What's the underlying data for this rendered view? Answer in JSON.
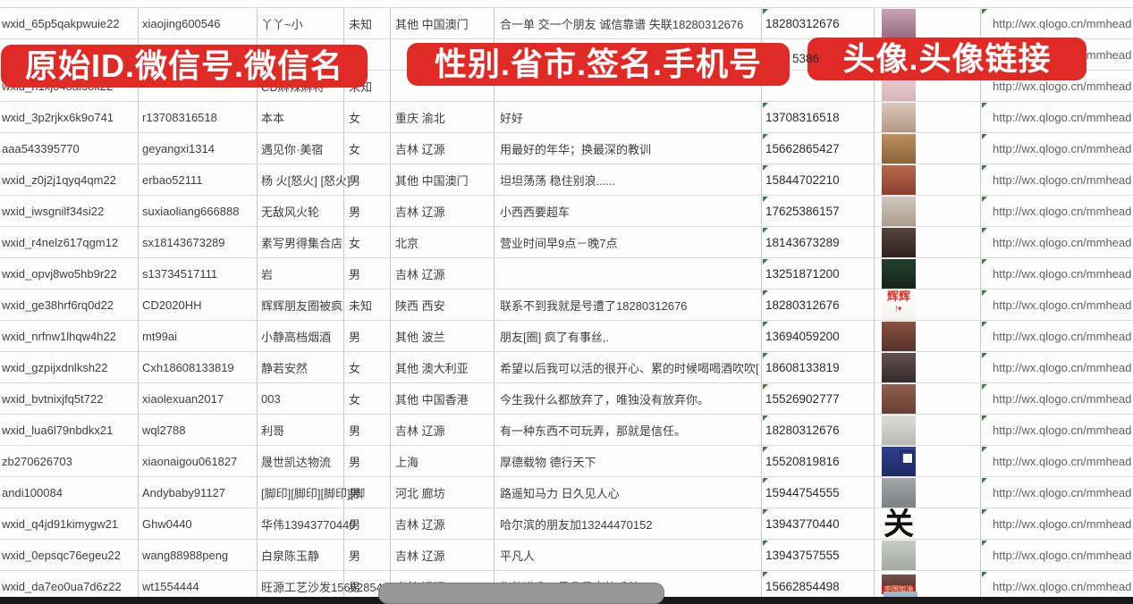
{
  "banners": [
    {
      "label": "原始ID.微信号.微信名"
    },
    {
      "label": "性别.省市.签名.手机号"
    },
    {
      "label": "头像.头像链接"
    }
  ],
  "partial_phone": "5386",
  "link_text": "http://wx.qlogo.cn/mmhead",
  "colors": {
    "banner_red": "#e02a25",
    "grid_vertical": "#c9c9c9",
    "grid_horizontal": "#d9d9d9",
    "cell_text": "#3f3f3f",
    "link_text": "#616161",
    "marker_green": "#3f7d46",
    "scrollbar_track": "#181818",
    "scrollbar_thumb": "#979797"
  },
  "partial_avatar": {
    "c1": "#a3bbcc",
    "c2": "#7f9cb2"
  },
  "columns": [
    "原始ID",
    "微信号",
    "微信名",
    "性别",
    "省市",
    "签名",
    "手机号",
    "头像",
    "头像链接"
  ],
  "rows": [
    {
      "wxid": "wxid_65p5qakpwuie22",
      "wechat_id": "xiaojing600546",
      "name": "丫丫~小",
      "gender": "未知",
      "region": "其他 中国澳门",
      "signature": "合一单 交一个朋友 诚信靠谱 失联18280312676",
      "phone": "18280312676",
      "has_link": true,
      "avatar": {
        "c1": "#c9a3b4",
        "c2": "#96697f"
      }
    },
    {
      "wxid": "",
      "wechat_id": "",
      "name": "",
      "gender": "",
      "region": "",
      "signature": "",
      "phone": "",
      "has_link": true,
      "avatar": {
        "c1": "#b7c3d2",
        "c2": "#93a5bb"
      }
    },
    {
      "wxid": "wxid_h1xj048al3ok22",
      "wechat_id": "",
      "name": "CD麻辣麻将",
      "gender": "未知",
      "region": "",
      "signature": "",
      "phone": "",
      "has_link": true,
      "avatar": {
        "c1": "#ecd4d8",
        "c2": "#d8b3bc"
      }
    },
    {
      "wxid": "wxid_3p2rjkx6k9o741",
      "wechat_id": "r13708316518",
      "name": "本本",
      "gender": "女",
      "region": "重庆 渝北",
      "signature": "好好",
      "phone": "13708316518",
      "has_link": true,
      "avatar": {
        "c1": "#dcc8bd",
        "c2": "#b49786"
      }
    },
    {
      "wxid": "aaa543395770",
      "wechat_id": "geyangxi1314",
      "name": "遇见你·美宿",
      "gender": "女",
      "region": "吉林 辽源",
      "signature": "用最好的年华；换最深的教训",
      "phone": "15662865427",
      "has_link": true,
      "avatar": {
        "c1": "#bc9060",
        "c2": "#8d6239"
      }
    },
    {
      "wxid": "wxid_z0j2j1qyq4qm22",
      "wechat_id": "erbao52111",
      "name": "杨 火[怒火] [怒火]",
      "gender": "男",
      "region": "其他 中国澳门",
      "signature": "坦坦荡荡 稳住别浪......",
      "phone": "15844702210",
      "has_link": true,
      "avatar": {
        "c1": "#b7684e",
        "c2": "#8c402f"
      }
    },
    {
      "wxid": "wxid_iwsgnilf34si22",
      "wechat_id": "suxiaoliang666888",
      "name": "无敌风火轮",
      "gender": "男",
      "region": "吉林 辽源",
      "signature": "小西西要超车",
      "phone": "17625386157",
      "has_link": true,
      "avatar": {
        "c1": "#d2c8bd",
        "c2": "#ab9d8f"
      }
    },
    {
      "wxid": "wxid_r4nelz617qgm12",
      "wechat_id": "sx18143673289",
      "name": "素写男得集合店",
      "gender": "女",
      "region": "北京",
      "signature": "营业时间早9点－晚7点",
      "phone": "18143673289",
      "has_link": true,
      "avatar": {
        "c1": "#56453c",
        "c2": "#2e221d"
      }
    },
    {
      "wxid": "wxid_opvj8wo5hb9r22",
      "wechat_id": "s13734517111",
      "name": "岩",
      "gender": "男",
      "region": "吉林 辽源",
      "signature": "",
      "phone": "13251871200",
      "has_link": true,
      "avatar": {
        "c1": "#24402e",
        "c2": "#122619"
      }
    },
    {
      "wxid": "wxid_ge38hrf6rq0d22",
      "wechat_id": "CD2020HH",
      "name": "辉辉朋友圈被疯",
      "gender": "未知",
      "region": "陕西 西安",
      "signature": "联系不到我就是号遭了18280312676",
      "phone": "18280312676",
      "has_link": true,
      "avatar": {
        "c1": "#ffffff",
        "c2": "#f5f2ef",
        "label": "辉辉",
        "label_color": "#d8342a",
        "label_size": 13,
        "sub": "!♥",
        "sub_color": "#d8342a"
      }
    },
    {
      "wxid": "wxid_nrfnw1lhqw4h22",
      "wechat_id": "mt99ai",
      "name": "小静高档烟酒",
      "gender": "男",
      "region": "其他 波兰",
      "signature": "朋友[圈] 疯了有事丝,.",
      "phone": "13694059200",
      "has_link": true,
      "avatar": {
        "c1": "#8a5140",
        "c2": "#52322a"
      }
    },
    {
      "wxid": "wxid_gzpijxdnlksh22",
      "wechat_id": "Cxh18608133819",
      "name": "静若安然",
      "gender": "女",
      "region": "其他 澳大利亚",
      "signature": "希望以后我可以活的很开心、累的时候喝喝酒吹吹[",
      "phone": "18608133819",
      "has_link": true,
      "avatar": {
        "c1": "#63504f",
        "c2": "#352b2b"
      }
    },
    {
      "wxid": "wxid_bvtnixjfq5t722",
      "wechat_id": "xiaolexuan2017",
      "name": "003",
      "gender": "女",
      "region": "其他 中国香港",
      "signature": "今生我什么都放弃了，唯独没有放弃你。",
      "phone": "15526902777",
      "has_link": true,
      "avatar": {
        "c1": "#93604e",
        "c2": "#663f33"
      }
    },
    {
      "wxid": "wxid_lua6l79nbdkx21",
      "wechat_id": "wql2788",
      "name": "利哥",
      "gender": "男",
      "region": "吉林 辽源",
      "signature": "有一种东西不可玩弄，那就是信任。",
      "phone": "18280312676",
      "has_link": true,
      "avatar": {
        "c1": "#dcdcd7",
        "c2": "#bcbcb5"
      }
    },
    {
      "wxid": "zb270626703",
      "wechat_id": "xiaonaigou061827",
      "name": "晟世凯达物流",
      "gender": "男",
      "region": "上海",
      "signature": "厚德载物 德行天下",
      "phone": "15520819816",
      "has_link": true,
      "avatar": {
        "c1": "#2f418f",
        "c2": "#1d2a63",
        "qr": true
      }
    },
    {
      "wxid": "andi100084",
      "wechat_id": "Andybaby91127",
      "name": "[脚印][脚印][脚印][脚",
      "gender": "男",
      "region": "河北 廊坊",
      "signature": "路遥知马力 日久见人心",
      "phone": "15944754555",
      "has_link": true,
      "avatar": {
        "c1": "#a2a8aa",
        "c2": "#7c8284"
      }
    },
    {
      "wxid": "wxid_q4jd91kimygw21",
      "wechat_id": "Ghw0440",
      "name": "华伟13943770440",
      "gender": "男",
      "region": "吉林 辽源",
      "signature": "哈尔滨的朋友加13244470152",
      "phone": "13943770440",
      "has_link": true,
      "avatar": {
        "c1": "#ffffff",
        "c2": "#f7f6f3",
        "label": "关",
        "label_color": "#111111",
        "label_size": 34
      }
    },
    {
      "wxid": "wxid_0epsqc76egeu22",
      "wechat_id": "wang88988peng",
      "name": "白泉陈玉静",
      "gender": "男",
      "region": "吉林 辽源",
      "signature": "平凡人",
      "phone": "13943757555",
      "has_link": true,
      "avatar": {
        "c1": "#c9ccc7",
        "c2": "#a6aaa3"
      }
    },
    {
      "wxid": "wxid_da7eo0ua7d6z22",
      "wechat_id": "wt1554444",
      "name": "旺源工艺沙发15662854",
      "gender": "男",
      "region": "吉林 辽源",
      "signature": "您的满意，是我最大的成就",
      "phone": "15662854498",
      "has_link": true,
      "avatar": {
        "c1": "#75534a",
        "c2": "#4a3029",
        "strip": "中国加油",
        "short": true
      }
    }
  ]
}
